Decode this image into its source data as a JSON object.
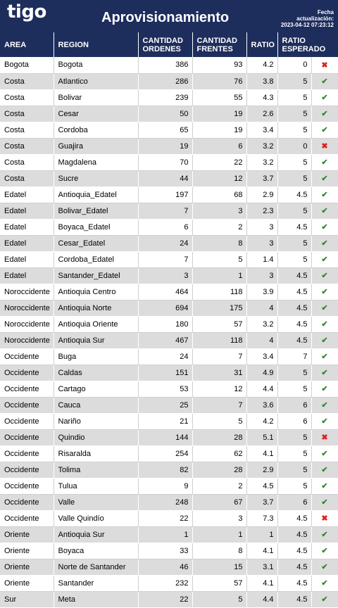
{
  "header": {
    "logo": "tigo",
    "title": "Aprovisionamiento",
    "update_label_line1": "Fecha",
    "update_label_line2": "actualización:",
    "update_value": "2023-04-12 07:23:12"
  },
  "table": {
    "columns": {
      "area": "AREA",
      "region": "REGION",
      "ordenes_1": "CANTIDAD",
      "ordenes_2": "ORDENES",
      "frentes_1": "CANTIDAD",
      "frentes_2": "FRENTES",
      "ratio": "RATIO",
      "esperado_1": "RATIO",
      "esperado_2": "ESPERADO"
    },
    "rows": [
      {
        "area": "Bogota",
        "region": "Bogota",
        "ordenes": "386",
        "frentes": "93",
        "ratio": "4.2",
        "esperado": "0",
        "ok": false
      },
      {
        "area": "Costa",
        "region": "Atlantico",
        "ordenes": "286",
        "frentes": "76",
        "ratio": "3.8",
        "esperado": "5",
        "ok": true
      },
      {
        "area": "Costa",
        "region": "Bolivar",
        "ordenes": "239",
        "frentes": "55",
        "ratio": "4.3",
        "esperado": "5",
        "ok": true
      },
      {
        "area": "Costa",
        "region": "Cesar",
        "ordenes": "50",
        "frentes": "19",
        "ratio": "2.6",
        "esperado": "5",
        "ok": true
      },
      {
        "area": "Costa",
        "region": "Cordoba",
        "ordenes": "65",
        "frentes": "19",
        "ratio": "3.4",
        "esperado": "5",
        "ok": true
      },
      {
        "area": "Costa",
        "region": "Guajira",
        "ordenes": "19",
        "frentes": "6",
        "ratio": "3.2",
        "esperado": "0",
        "ok": false
      },
      {
        "area": "Costa",
        "region": "Magdalena",
        "ordenes": "70",
        "frentes": "22",
        "ratio": "3.2",
        "esperado": "5",
        "ok": true
      },
      {
        "area": "Costa",
        "region": "Sucre",
        "ordenes": "44",
        "frentes": "12",
        "ratio": "3.7",
        "esperado": "5",
        "ok": true
      },
      {
        "area": "Edatel",
        "region": "Antioquia_Edatel",
        "ordenes": "197",
        "frentes": "68",
        "ratio": "2.9",
        "esperado": "4.5",
        "ok": true
      },
      {
        "area": "Edatel",
        "region": "Bolivar_Edatel",
        "ordenes": "7",
        "frentes": "3",
        "ratio": "2.3",
        "esperado": "5",
        "ok": true
      },
      {
        "area": "Edatel",
        "region": "Boyaca_Edatel",
        "ordenes": "6",
        "frentes": "2",
        "ratio": "3",
        "esperado": "4.5",
        "ok": true
      },
      {
        "area": "Edatel",
        "region": "Cesar_Edatel",
        "ordenes": "24",
        "frentes": "8",
        "ratio": "3",
        "esperado": "5",
        "ok": true
      },
      {
        "area": "Edatel",
        "region": "Cordoba_Edatel",
        "ordenes": "7",
        "frentes": "5",
        "ratio": "1.4",
        "esperado": "5",
        "ok": true
      },
      {
        "area": "Edatel",
        "region": "Santander_Edatel",
        "ordenes": "3",
        "frentes": "1",
        "ratio": "3",
        "esperado": "4.5",
        "ok": true
      },
      {
        "area": "Noroccidente",
        "region": "Antioquia Centro",
        "ordenes": "464",
        "frentes": "118",
        "ratio": "3.9",
        "esperado": "4.5",
        "ok": true
      },
      {
        "area": "Noroccidente",
        "region": "Antioquia Norte",
        "ordenes": "694",
        "frentes": "175",
        "ratio": "4",
        "esperado": "4.5",
        "ok": true
      },
      {
        "area": "Noroccidente",
        "region": "Antioquia Oriente",
        "ordenes": "180",
        "frentes": "57",
        "ratio": "3.2",
        "esperado": "4.5",
        "ok": true
      },
      {
        "area": "Noroccidente",
        "region": "Antioquia Sur",
        "ordenes": "467",
        "frentes": "118",
        "ratio": "4",
        "esperado": "4.5",
        "ok": true
      },
      {
        "area": "Occidente",
        "region": "Buga",
        "ordenes": "24",
        "frentes": "7",
        "ratio": "3.4",
        "esperado": "7",
        "ok": true
      },
      {
        "area": "Occidente",
        "region": "Caldas",
        "ordenes": "151",
        "frentes": "31",
        "ratio": "4.9",
        "esperado": "5",
        "ok": true
      },
      {
        "area": "Occidente",
        "region": "Cartago",
        "ordenes": "53",
        "frentes": "12",
        "ratio": "4.4",
        "esperado": "5",
        "ok": true
      },
      {
        "area": "Occidente",
        "region": "Cauca",
        "ordenes": "25",
        "frentes": "7",
        "ratio": "3.6",
        "esperado": "6",
        "ok": true
      },
      {
        "area": "Occidente",
        "region": "Nariño",
        "ordenes": "21",
        "frentes": "5",
        "ratio": "4.2",
        "esperado": "6",
        "ok": true
      },
      {
        "area": "Occidente",
        "region": "Quindio",
        "ordenes": "144",
        "frentes": "28",
        "ratio": "5.1",
        "esperado": "5",
        "ok": false
      },
      {
        "area": "Occidente",
        "region": "Risaralda",
        "ordenes": "254",
        "frentes": "62",
        "ratio": "4.1",
        "esperado": "5",
        "ok": true
      },
      {
        "area": "Occidente",
        "region": "Tolima",
        "ordenes": "82",
        "frentes": "28",
        "ratio": "2.9",
        "esperado": "5",
        "ok": true
      },
      {
        "area": "Occidente",
        "region": "Tulua",
        "ordenes": "9",
        "frentes": "2",
        "ratio": "4.5",
        "esperado": "5",
        "ok": true
      },
      {
        "area": "Occidente",
        "region": "Valle",
        "ordenes": "248",
        "frentes": "67",
        "ratio": "3.7",
        "esperado": "6",
        "ok": true
      },
      {
        "area": "Occidente",
        "region": "Valle Quindío",
        "ordenes": "22",
        "frentes": "3",
        "ratio": "7.3",
        "esperado": "4.5",
        "ok": false
      },
      {
        "area": "Oriente",
        "region": "Antioquia Sur",
        "ordenes": "1",
        "frentes": "1",
        "ratio": "1",
        "esperado": "4.5",
        "ok": true
      },
      {
        "area": "Oriente",
        "region": "Boyaca",
        "ordenes": "33",
        "frentes": "8",
        "ratio": "4.1",
        "esperado": "4.5",
        "ok": true
      },
      {
        "area": "Oriente",
        "region": "Norte de Santander",
        "ordenes": "46",
        "frentes": "15",
        "ratio": "3.1",
        "esperado": "4.5",
        "ok": true
      },
      {
        "area": "Oriente",
        "region": "Santander",
        "ordenes": "232",
        "frentes": "57",
        "ratio": "4.1",
        "esperado": "4.5",
        "ok": true
      },
      {
        "area": "Sur",
        "region": "Meta",
        "ordenes": "22",
        "frentes": "5",
        "ratio": "4.4",
        "esperado": "4.5",
        "ok": true
      }
    ]
  },
  "icons": {
    "ok_glyph": "✔",
    "bad_glyph": "✖",
    "ok_color": "#2e8b2e",
    "bad_color": "#e02020"
  }
}
